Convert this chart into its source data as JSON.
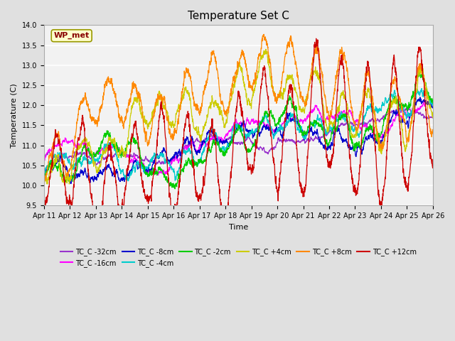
{
  "title": "Temperature Set C",
  "xlabel": "Time",
  "ylabel": "Temperature (C)",
  "ylim": [
    9.5,
    14.0
  ],
  "series": [
    {
      "label": "TC_C -32cm",
      "color": "#9933CC"
    },
    {
      "label": "TC_C -16cm",
      "color": "#FF00FF"
    },
    {
      "label": "TC_C -8cm",
      "color": "#0000CC"
    },
    {
      "label": "TC_C -4cm",
      "color": "#00CCCC"
    },
    {
      "label": "TC_C -2cm",
      "color": "#00CC00"
    },
    {
      "label": "TC_C +4cm",
      "color": "#CCCC00"
    },
    {
      "label": "TC_C +8cm",
      "color": "#FF8800"
    },
    {
      "label": "TC_C +12cm",
      "color": "#CC0000"
    }
  ],
  "xtick_labels": [
    "Apr 11",
    "Apr 12",
    "Apr 13",
    "Apr 14",
    "Apr 15",
    "Apr 16",
    "Apr 17",
    "Apr 18",
    "Apr 19",
    "Apr 20",
    "Apr 21",
    "Apr 22",
    "Apr 23",
    "Apr 24",
    "Apr 25",
    "Apr 26"
  ],
  "wp_met_box_color": "#FFFFCC",
  "wp_met_text_color": "#880000",
  "background_color": "#E0E0E0",
  "axes_bg_color": "#F2F2F2",
  "grid_color": "#FFFFFF"
}
